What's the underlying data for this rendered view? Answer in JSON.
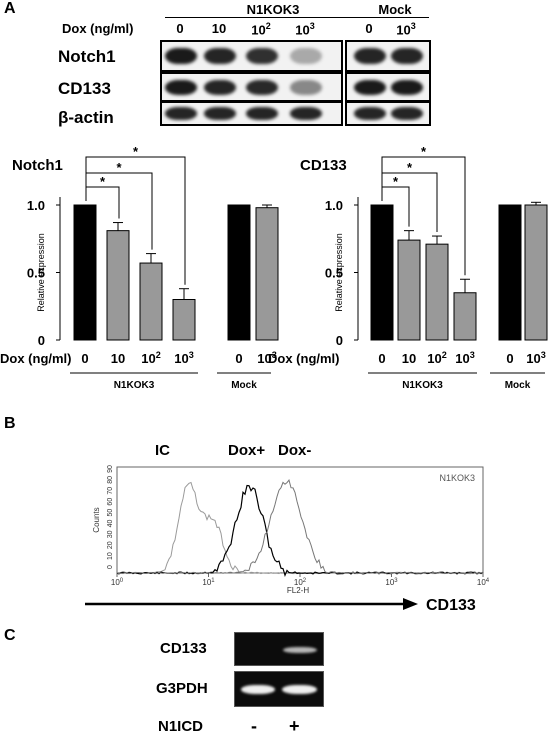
{
  "panel_a": {
    "letter": "A",
    "western_blot": {
      "group_labels": [
        "N1KOK3",
        "Mock"
      ],
      "dox_label": "Dox (ng/ml)",
      "doses_n1kok3": [
        "0",
        "10",
        "10",
        "10"
      ],
      "dose_sup_n1kok3": [
        "",
        "",
        "2",
        "3"
      ],
      "doses_mock": [
        "0",
        "10"
      ],
      "dose_sup_mock": [
        "",
        "3"
      ],
      "row_labels": [
        "Notch1",
        "CD133",
        "β-actin"
      ],
      "band_intensity": {
        "Notch1": [
          0.95,
          0.9,
          0.85,
          0.3,
          0.9,
          0.9
        ],
        "CD133": [
          0.95,
          0.9,
          0.88,
          0.45,
          0.95,
          0.95
        ],
        "β-actin": [
          0.9,
          0.9,
          0.9,
          0.9,
          0.9,
          0.9
        ]
      }
    }
  },
  "chart_data": [
    {
      "type": "bar",
      "title": "Notch1",
      "ylabel": "Relative expression",
      "ylim": [
        0,
        1.0
      ],
      "yticks": [
        "0",
        "0.5",
        "1.0"
      ],
      "xlabel": "Dox (ng/ml)",
      "categories": [
        "0",
        "10",
        "10²",
        "10³",
        "0",
        "10³"
      ],
      "values": [
        1.0,
        0.81,
        0.57,
        0.3,
        1.0,
        0.98
      ],
      "errors": [
        0,
        0.06,
        0.07,
        0.08,
        0,
        0.02
      ],
      "bar_colors": [
        "#000000",
        "#999999",
        "#999999",
        "#999999",
        "#000000",
        "#999999"
      ],
      "groups": [
        "N1KOK3",
        "Mock"
      ],
      "significance": "*"
    },
    {
      "type": "bar",
      "title": "CD133",
      "ylabel": "Relative expression",
      "ylim": [
        0,
        1.0
      ],
      "yticks": [
        "0",
        "0.5",
        "1.0"
      ],
      "xlabel": "Dox (ng/ml)",
      "categories": [
        "0",
        "10",
        "10²",
        "10³",
        "0",
        "10³"
      ],
      "values": [
        1.0,
        0.74,
        0.71,
        0.35,
        1.0,
        1.0
      ],
      "errors": [
        0,
        0.07,
        0.06,
        0.1,
        0,
        0.02
      ],
      "bar_colors": [
        "#000000",
        "#999999",
        "#999999",
        "#999999",
        "#000000",
        "#999999"
      ],
      "groups": [
        "N1KOK3",
        "Mock"
      ],
      "significance": "*"
    }
  ],
  "panel_b": {
    "letter": "B",
    "curve_labels": [
      "IC",
      "Dox+",
      "Dox-"
    ],
    "inset_label": "N1KOK3",
    "y_label": "Counts",
    "y_ticks": [
      "0",
      "10",
      "20",
      "30",
      "40",
      "50",
      "60",
      "70",
      "80",
      "90"
    ],
    "x_label": "FL2-H",
    "x_tick_base": "10",
    "x_tick_exps": [
      "0",
      "1",
      "2",
      "3",
      "4"
    ],
    "arrow_label": "CD133"
  },
  "panel_c": {
    "letter": "C",
    "row_labels": [
      "CD133",
      "G3PDH"
    ],
    "bottom_label": "N1ICD",
    "lanes": [
      "-",
      "+"
    ]
  }
}
